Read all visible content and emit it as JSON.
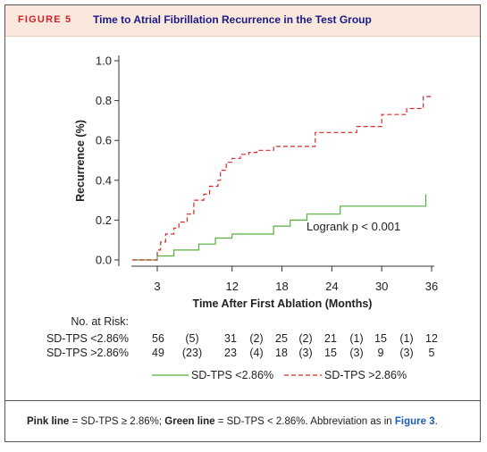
{
  "header": {
    "figure_label": "FIGURE 5",
    "title": "Time to Atrial Fibrillation Recurrence in the Test Group"
  },
  "footer": {
    "pink_label": "Pink line",
    "pink_text": " = SD-TPS ≥ 2.86%; ",
    "green_label": "Green line",
    "green_text": " = SD-TPS < 2.86%. Abbreviation as in ",
    "link_text": "Figure 3",
    "end": "."
  },
  "colors": {
    "green": "#55b03c",
    "red": "#d42a2a"
  },
  "chart_data": {
    "type": "line",
    "xlabel": "Time After First Ablation (Months)",
    "ylabel": "Recurrence (%)",
    "xticks": [
      3,
      12,
      18,
      24,
      30,
      36
    ],
    "yticks": [
      0.0,
      0.2,
      0.4,
      0.6,
      0.8,
      1.0
    ],
    "tick_labels_y": [
      "0.0",
      "0.2",
      "0.4",
      "0.6",
      "0.8",
      "1.0"
    ],
    "xlim": [
      0,
      37
    ],
    "ylim": [
      0,
      1.0
    ],
    "annotation": "Logrank p < 0.001",
    "series": [
      {
        "name": "SD-TPS <2.86%",
        "color": "#55b03c",
        "style": "solid",
        "steps": [
          [
            0,
            0
          ],
          [
            3,
            0
          ],
          [
            3,
            0.02
          ],
          [
            5,
            0.02
          ],
          [
            5,
            0.05
          ],
          [
            8,
            0.05
          ],
          [
            8,
            0.08
          ],
          [
            10,
            0.08
          ],
          [
            10,
            0.11
          ],
          [
            12,
            0.11
          ],
          [
            12,
            0.13
          ],
          [
            17,
            0.13
          ],
          [
            17,
            0.17
          ],
          [
            19,
            0.17
          ],
          [
            19,
            0.2
          ],
          [
            21,
            0.2
          ],
          [
            21,
            0.23
          ],
          [
            25,
            0.23
          ],
          [
            25,
            0.27
          ],
          [
            35.3,
            0.27
          ],
          [
            35.3,
            0.33
          ]
        ]
      },
      {
        "name": "SD-TPS >2.86%",
        "color": "#d42a2a",
        "style": "dashed",
        "steps": [
          [
            0,
            0
          ],
          [
            3,
            0
          ],
          [
            3,
            0.05
          ],
          [
            3.4,
            0.05
          ],
          [
            3.4,
            0.09
          ],
          [
            4,
            0.09
          ],
          [
            4,
            0.13
          ],
          [
            5,
            0.13
          ],
          [
            5,
            0.16
          ],
          [
            5.6,
            0.16
          ],
          [
            5.6,
            0.19
          ],
          [
            6.6,
            0.19
          ],
          [
            6.6,
            0.23
          ],
          [
            7.4,
            0.23
          ],
          [
            7.4,
            0.3
          ],
          [
            8.6,
            0.3
          ],
          [
            8.6,
            0.33
          ],
          [
            9.3,
            0.33
          ],
          [
            9.3,
            0.37
          ],
          [
            10.3,
            0.37
          ],
          [
            10.3,
            0.4
          ],
          [
            10.6,
            0.4
          ],
          [
            10.6,
            0.45
          ],
          [
            11.3,
            0.45
          ],
          [
            11.3,
            0.49
          ],
          [
            12,
            0.49
          ],
          [
            12,
            0.51
          ],
          [
            13,
            0.51
          ],
          [
            13,
            0.53
          ],
          [
            14,
            0.53
          ],
          [
            14,
            0.54
          ],
          [
            15,
            0.54
          ],
          [
            15,
            0.55
          ],
          [
            17,
            0.55
          ],
          [
            17,
            0.57
          ],
          [
            22,
            0.57
          ],
          [
            22,
            0.64
          ],
          [
            27,
            0.64
          ],
          [
            27,
            0.67
          ],
          [
            30,
            0.67
          ],
          [
            30,
            0.73
          ],
          [
            33,
            0.73
          ],
          [
            33,
            0.76
          ],
          [
            35,
            0.76
          ],
          [
            35,
            0.82
          ],
          [
            36,
            0.82
          ]
        ]
      }
    ],
    "risk_table": {
      "title": "No. at Risk:",
      "rows": [
        {
          "label": "SD-TPS <2.86%",
          "values": [
            "56",
            "(5)",
            "31",
            "(2)",
            "25",
            "(2)",
            "21",
            "(1)",
            "15",
            "(1)",
            "12"
          ]
        },
        {
          "label": "SD-TPS >2.86%",
          "values": [
            "49",
            "(23)",
            "23",
            "(4)",
            "18",
            "(3)",
            "15",
            "(3)",
            "9",
            "(3)",
            "5"
          ]
        }
      ]
    }
  }
}
